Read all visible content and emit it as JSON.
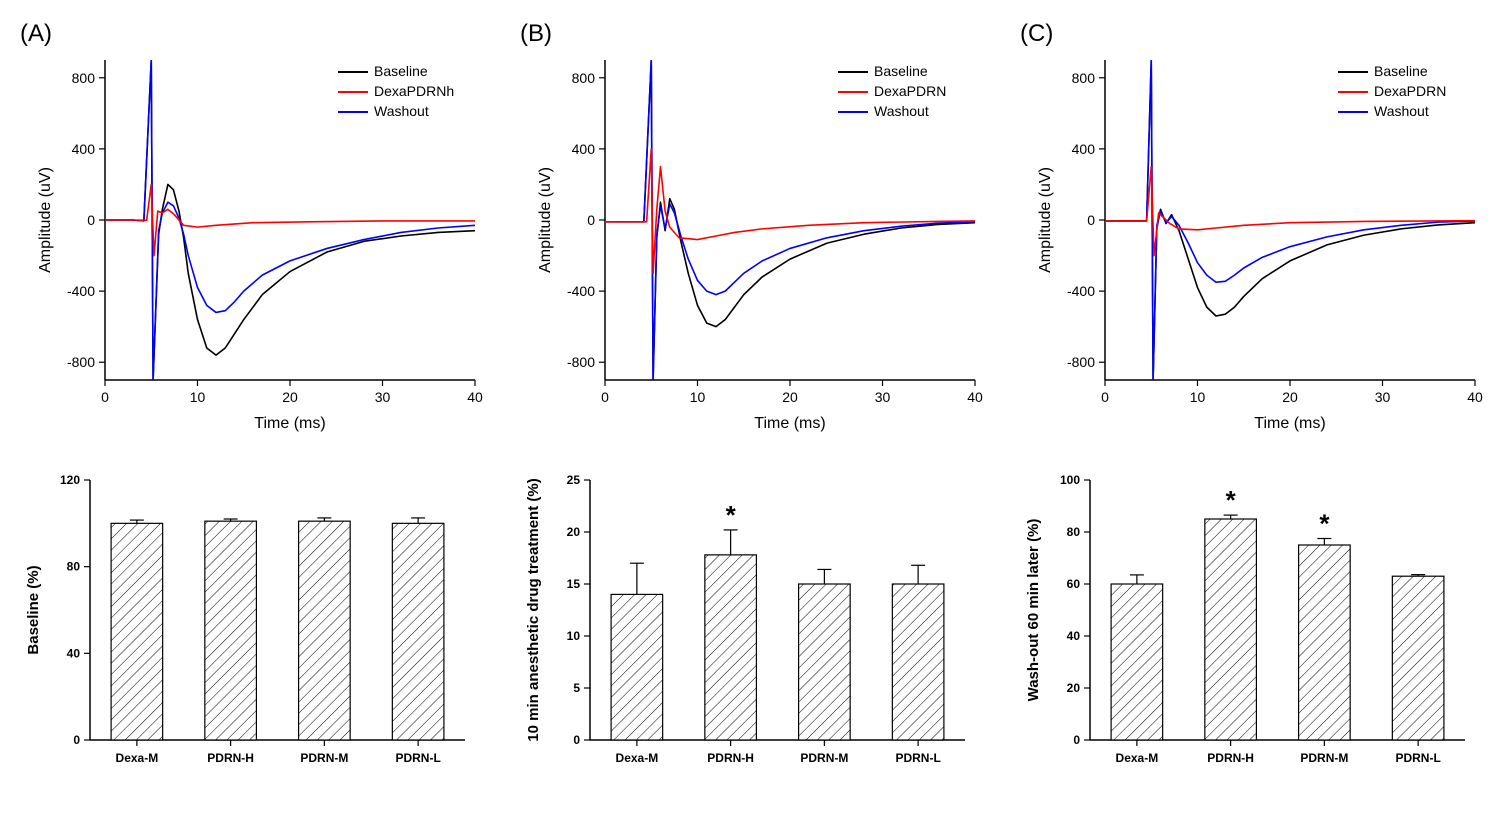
{
  "background_color": "#ffffff",
  "line_charts": [
    {
      "panel_label": "(A)",
      "type": "line",
      "xlabel": "Time (ms)",
      "ylabel": "Amplitude (uV)",
      "xlim": [
        0,
        40
      ],
      "xtick_step": 10,
      "ylim": [
        -900,
        900
      ],
      "ytick_step": 400,
      "axis_color": "#000000",
      "tick_fontsize": 14,
      "label_fontsize": 16,
      "legend": [
        "Baseline",
        "DexaPDRNh",
        "Washout"
      ],
      "legend_colors": [
        "#000000",
        "#ff0000",
        "#0000ff"
      ],
      "line_width": 1.6,
      "spike_x": 5,
      "series": [
        {
          "color": "#000000",
          "points": [
            [
              0,
              0
            ],
            [
              3,
              0
            ],
            [
              4.2,
              -5
            ],
            [
              5,
              900
            ],
            [
              5.2,
              -900
            ],
            [
              5.8,
              -80
            ],
            [
              6.2,
              60
            ],
            [
              6.8,
              200
            ],
            [
              7.4,
              170
            ],
            [
              8,
              50
            ],
            [
              8.5,
              -100
            ],
            [
              9,
              -300
            ],
            [
              10,
              -560
            ],
            [
              11,
              -720
            ],
            [
              12,
              -760
            ],
            [
              13,
              -720
            ],
            [
              14,
              -640
            ],
            [
              15,
              -560
            ],
            [
              17,
              -420
            ],
            [
              20,
              -290
            ],
            [
              24,
              -180
            ],
            [
              28,
              -120
            ],
            [
              32,
              -90
            ],
            [
              36,
              -70
            ],
            [
              40,
              -60
            ]
          ]
        },
        {
          "color": "#0000ff",
          "points": [
            [
              0,
              0
            ],
            [
              3,
              0
            ],
            [
              4.2,
              -5
            ],
            [
              5,
              900
            ],
            [
              5.2,
              -900
            ],
            [
              5.8,
              -60
            ],
            [
              6.2,
              40
            ],
            [
              6.8,
              100
            ],
            [
              7.4,
              80
            ],
            [
              8,
              10
            ],
            [
              8.5,
              -80
            ],
            [
              9,
              -200
            ],
            [
              10,
              -380
            ],
            [
              11,
              -480
            ],
            [
              12,
              -520
            ],
            [
              13,
              -510
            ],
            [
              14,
              -460
            ],
            [
              15,
              -400
            ],
            [
              17,
              -310
            ],
            [
              20,
              -230
            ],
            [
              24,
              -160
            ],
            [
              28,
              -110
            ],
            [
              32,
              -70
            ],
            [
              36,
              -45
            ],
            [
              40,
              -30
            ]
          ]
        },
        {
          "color": "#ff0000",
          "points": [
            [
              0,
              0
            ],
            [
              3,
              0
            ],
            [
              4.5,
              -2
            ],
            [
              5,
              200
            ],
            [
              5.3,
              -200
            ],
            [
              5.7,
              50
            ],
            [
              6.2,
              40
            ],
            [
              6.8,
              60
            ],
            [
              7.5,
              30
            ],
            [
              8.5,
              -30
            ],
            [
              10,
              -40
            ],
            [
              12,
              -30
            ],
            [
              16,
              -15
            ],
            [
              22,
              -10
            ],
            [
              30,
              -5
            ],
            [
              40,
              -5
            ]
          ]
        }
      ]
    },
    {
      "panel_label": "(B)",
      "type": "line",
      "xlabel": "Time (ms)",
      "ylabel": "Amplitude (uV)",
      "xlim": [
        0,
        40
      ],
      "xtick_step": 10,
      "ylim": [
        -900,
        900
      ],
      "ytick_step": 400,
      "axis_color": "#000000",
      "tick_fontsize": 14,
      "label_fontsize": 16,
      "legend": [
        "Baseline",
        "DexaPDRN",
        "Washout"
      ],
      "legend_colors": [
        "#000000",
        "#ff0000",
        "#0000ff"
      ],
      "line_width": 1.6,
      "spike_x": 5,
      "series": [
        {
          "color": "#000000",
          "points": [
            [
              0,
              -10
            ],
            [
              3,
              -10
            ],
            [
              4.2,
              -10
            ],
            [
              5,
              900
            ],
            [
              5.2,
              -900
            ],
            [
              5.6,
              -100
            ],
            [
              6,
              100
            ],
            [
              6.5,
              -60
            ],
            [
              7,
              120
            ],
            [
              7.5,
              60
            ],
            [
              8.2,
              -120
            ],
            [
              9,
              -300
            ],
            [
              10,
              -480
            ],
            [
              11,
              -580
            ],
            [
              12,
              -600
            ],
            [
              13,
              -560
            ],
            [
              14,
              -490
            ],
            [
              15,
              -420
            ],
            [
              17,
              -320
            ],
            [
              20,
              -220
            ],
            [
              24,
              -130
            ],
            [
              28,
              -80
            ],
            [
              32,
              -45
            ],
            [
              36,
              -25
            ],
            [
              40,
              -15
            ]
          ]
        },
        {
          "color": "#0000ff",
          "points": [
            [
              0,
              -10
            ],
            [
              3,
              -10
            ],
            [
              4.2,
              -10
            ],
            [
              5,
              900
            ],
            [
              5.2,
              -900
            ],
            [
              5.6,
              -80
            ],
            [
              6,
              80
            ],
            [
              6.5,
              -50
            ],
            [
              7,
              90
            ],
            [
              7.5,
              40
            ],
            [
              8.2,
              -90
            ],
            [
              9,
              -220
            ],
            [
              10,
              -340
            ],
            [
              11,
              -400
            ],
            [
              12,
              -420
            ],
            [
              13,
              -400
            ],
            [
              14,
              -350
            ],
            [
              15,
              -300
            ],
            [
              17,
              -230
            ],
            [
              20,
              -160
            ],
            [
              24,
              -100
            ],
            [
              28,
              -60
            ],
            [
              32,
              -35
            ],
            [
              36,
              -18
            ],
            [
              40,
              -10
            ]
          ]
        },
        {
          "color": "#ff0000",
          "points": [
            [
              0,
              -10
            ],
            [
              3,
              -10
            ],
            [
              4.5,
              -10
            ],
            [
              5,
              400
            ],
            [
              5.2,
              -300
            ],
            [
              5.6,
              60
            ],
            [
              6,
              300
            ],
            [
              6.5,
              50
            ],
            [
              7,
              -40
            ],
            [
              8,
              -100
            ],
            [
              10,
              -110
            ],
            [
              12,
              -90
            ],
            [
              14,
              -70
            ],
            [
              17,
              -50
            ],
            [
              22,
              -30
            ],
            [
              28,
              -15
            ],
            [
              36,
              -8
            ],
            [
              40,
              -5
            ]
          ]
        }
      ]
    },
    {
      "panel_label": "(C)",
      "type": "line",
      "xlabel": "Time (ms)",
      "ylabel": "Amplitude (uV)",
      "xlim": [
        0,
        40
      ],
      "xtick_step": 10,
      "ylim": [
        -900,
        900
      ],
      "ytick_step": 400,
      "axis_color": "#000000",
      "tick_fontsize": 14,
      "label_fontsize": 16,
      "legend": [
        "Baseline",
        "DexaPDRN",
        "Washout"
      ],
      "legend_colors": [
        "#000000",
        "#ff0000",
        "#0000ff"
      ],
      "line_width": 1.6,
      "spike_x": 5,
      "series": [
        {
          "color": "#000000",
          "points": [
            [
              0,
              -5
            ],
            [
              3,
              -5
            ],
            [
              4.5,
              -5
            ],
            [
              5,
              900
            ],
            [
              5.2,
              -900
            ],
            [
              5.6,
              -50
            ],
            [
              6,
              60
            ],
            [
              6.6,
              -20
            ],
            [
              7.2,
              30
            ],
            [
              8,
              -60
            ],
            [
              9,
              -220
            ],
            [
              10,
              -380
            ],
            [
              11,
              -490
            ],
            [
              12,
              -540
            ],
            [
              13,
              -530
            ],
            [
              14,
              -490
            ],
            [
              15,
              -430
            ],
            [
              17,
              -330
            ],
            [
              20,
              -230
            ],
            [
              24,
              -140
            ],
            [
              28,
              -85
            ],
            [
              32,
              -50
            ],
            [
              36,
              -28
            ],
            [
              40,
              -15
            ]
          ]
        },
        {
          "color": "#0000ff",
          "points": [
            [
              0,
              -5
            ],
            [
              3,
              -5
            ],
            [
              4.5,
              -5
            ],
            [
              5,
              900
            ],
            [
              5.2,
              -900
            ],
            [
              5.6,
              -30
            ],
            [
              6,
              50
            ],
            [
              6.6,
              -15
            ],
            [
              7.2,
              20
            ],
            [
              8,
              -30
            ],
            [
              9,
              -130
            ],
            [
              10,
              -240
            ],
            [
              11,
              -310
            ],
            [
              12,
              -350
            ],
            [
              13,
              -345
            ],
            [
              14,
              -310
            ],
            [
              15,
              -270
            ],
            [
              17,
              -210
            ],
            [
              20,
              -150
            ],
            [
              24,
              -95
            ],
            [
              28,
              -55
            ],
            [
              32,
              -30
            ],
            [
              36,
              -12
            ],
            [
              40,
              -6
            ]
          ]
        },
        {
          "color": "#ff0000",
          "points": [
            [
              0,
              -5
            ],
            [
              3,
              -5
            ],
            [
              4.5,
              -5
            ],
            [
              5,
              300
            ],
            [
              5.3,
              -200
            ],
            [
              5.8,
              40
            ],
            [
              6.4,
              10
            ],
            [
              7,
              -20
            ],
            [
              8,
              -50
            ],
            [
              10,
              -55
            ],
            [
              12,
              -45
            ],
            [
              15,
              -30
            ],
            [
              20,
              -15
            ],
            [
              28,
              -8
            ],
            [
              40,
              -4
            ]
          ]
        }
      ]
    }
  ],
  "bar_charts": [
    {
      "type": "bar",
      "ylabel": "Baseline (%)",
      "ylim": [
        0,
        120
      ],
      "ytick_step": 40,
      "categories": [
        "Dexa-M",
        "PDRN-H",
        "PDRN-M",
        "PDRN-L"
      ],
      "values": [
        100,
        101,
        101,
        100
      ],
      "errors": [
        1.5,
        1,
        1.5,
        2.5
      ],
      "stars": [],
      "bar_fill": "#ffffff",
      "bar_stroke": "#000000",
      "hatch_stroke": "#000000",
      "axis_color": "#000000",
      "bar_width": 0.55,
      "tick_fontsize": 12,
      "label_fontsize": 15
    },
    {
      "type": "bar",
      "ylabel": "10 min anesthetic drug treatment (%)",
      "ylim": [
        0,
        25
      ],
      "ytick_step": 5,
      "categories": [
        "Dexa-M",
        "PDRN-H",
        "PDRN-M",
        "PDRN-L"
      ],
      "values": [
        14,
        17.8,
        15,
        15
      ],
      "errors": [
        3.0,
        2.4,
        1.4,
        1.8
      ],
      "stars": [
        1
      ],
      "bar_fill": "#ffffff",
      "bar_stroke": "#000000",
      "hatch_stroke": "#000000",
      "axis_color": "#000000",
      "bar_width": 0.55,
      "tick_fontsize": 12,
      "label_fontsize": 15
    },
    {
      "type": "bar",
      "ylabel": "Wash-out 60 min later (%)",
      "ylim": [
        0,
        100
      ],
      "ytick_step": 20,
      "categories": [
        "Dexa-M",
        "PDRN-H",
        "PDRN-M",
        "PDRN-L"
      ],
      "values": [
        60,
        85,
        75,
        63
      ],
      "errors": [
        3.5,
        1.5,
        2.5,
        0.6
      ],
      "stars": [
        1,
        2
      ],
      "bar_fill": "#ffffff",
      "bar_stroke": "#000000",
      "hatch_stroke": "#000000",
      "axis_color": "#000000",
      "bar_width": 0.55,
      "tick_fontsize": 12,
      "label_fontsize": 15
    }
  ]
}
